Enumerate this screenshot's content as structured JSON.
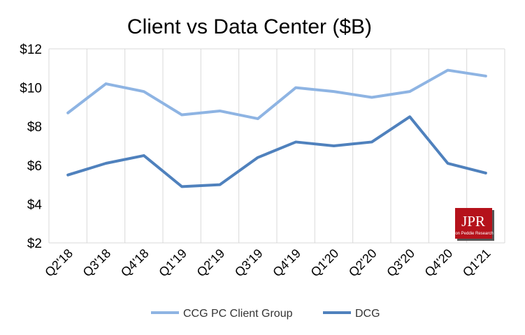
{
  "chart_data": {
    "type": "line",
    "title": "Client vs Data Center ($B)",
    "categories": [
      "Q2'18",
      "Q3'18",
      "Q4'18",
      "Q1'19",
      "Q2'19",
      "Q3'19",
      "Q4'19",
      "Q1'20",
      "Q2'20",
      "Q3'20",
      "Q4'20",
      "Q1'21"
    ],
    "series": [
      {
        "name": "CCG PC Client Group",
        "color": "#8EB4E3",
        "values": [
          8.7,
          10.2,
          9.8,
          8.6,
          8.8,
          8.4,
          10.0,
          9.8,
          9.5,
          9.8,
          10.9,
          10.6
        ]
      },
      {
        "name": "DCG",
        "color": "#4F81BD",
        "values": [
          5.5,
          6.1,
          6.5,
          4.9,
          5.0,
          6.4,
          7.2,
          7.0,
          7.2,
          8.5,
          6.1,
          5.6
        ]
      }
    ],
    "ylim": [
      2,
      12
    ],
    "yticks": [
      2,
      4,
      6,
      8,
      10,
      12
    ],
    "ytick_labels": [
      "$2",
      "$4",
      "$6",
      "$8",
      "$10",
      "$12"
    ],
    "xlabel": "",
    "ylabel": "",
    "grid": "vertical",
    "legend": "bottom"
  },
  "logo": {
    "text": "JPR",
    "subtext": "Jon Peddie Research",
    "color": "#B5121B"
  }
}
